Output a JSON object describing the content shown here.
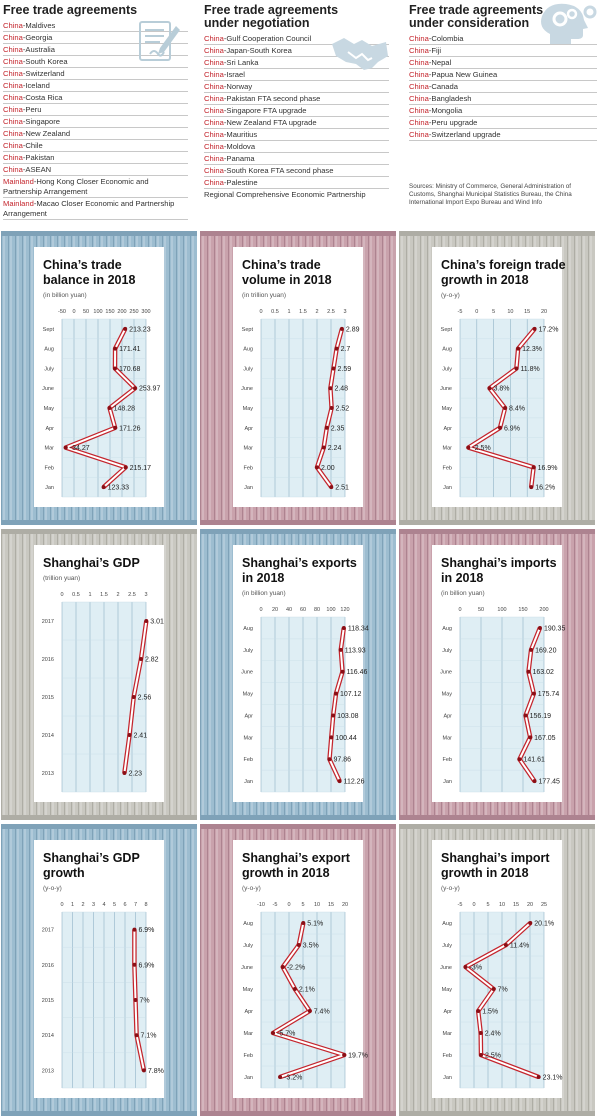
{
  "fta": {
    "col1": {
      "title": [
        "Free trade agreements"
      ],
      "items": [
        {
          "pre": "China",
          "rest": "-Maldives"
        },
        {
          "pre": "China",
          "rest": "-Georgia"
        },
        {
          "pre": "China",
          "rest": "-Australia"
        },
        {
          "pre": "China",
          "rest": "-South Korea"
        },
        {
          "pre": "China",
          "rest": "-Switzerland"
        },
        {
          "pre": "China",
          "rest": "-Iceland"
        },
        {
          "pre": "China",
          "rest": "-Costa Rica"
        },
        {
          "pre": "China",
          "rest": "-Peru"
        },
        {
          "pre": "China",
          "rest": "-Singapore"
        },
        {
          "pre": "China",
          "rest": "-New Zealand"
        },
        {
          "pre": "China",
          "rest": "-Chile"
        },
        {
          "pre": "China",
          "rest": "-Pakistan"
        },
        {
          "pre": "China",
          "rest": "-ASEAN"
        },
        {
          "pre": "Mainland",
          "rest": "-Hong Kong Closer Economic and Partnership Arrangement"
        },
        {
          "pre": "Mainland",
          "rest": "-Macao Closer Economic and Partnership Arrangement"
        }
      ]
    },
    "col2": {
      "title": [
        "Free trade agreements",
        "under negotiation"
      ],
      "items": [
        {
          "pre": "China",
          "rest": "-Gulf Cooperation Council"
        },
        {
          "pre": "China",
          "rest": "-Japan-South Korea"
        },
        {
          "pre": "China",
          "rest": "-Sri Lanka"
        },
        {
          "pre": "China",
          "rest": "-Israel"
        },
        {
          "pre": "China",
          "rest": "-Norway"
        },
        {
          "pre": "China",
          "rest": "-Pakistan FTA second phase"
        },
        {
          "pre": "China",
          "rest": "-Singapore FTA upgrade"
        },
        {
          "pre": "China",
          "rest": "-New Zealand FTA upgrade"
        },
        {
          "pre": "China",
          "rest": "-Mauritius"
        },
        {
          "pre": "China",
          "rest": "-Moldova"
        },
        {
          "pre": "China",
          "rest": "-Panama"
        },
        {
          "pre": "China",
          "rest": "-South Korea FTA second phase"
        },
        {
          "pre": "China",
          "rest": "-Palestine"
        },
        {
          "pre": "",
          "rest": "Regional Comprehensive Economic Partnership"
        }
      ]
    },
    "col3": {
      "title": [
        "Free trade agreements",
        "under consideration"
      ],
      "items": [
        {
          "pre": "China",
          "rest": "-Colombia"
        },
        {
          "pre": "China",
          "rest": "-Fiji"
        },
        {
          "pre": "China",
          "rest": "-Nepal"
        },
        {
          "pre": "China",
          "rest": "-Papua New Guinea"
        },
        {
          "pre": "China",
          "rest": "-Canada"
        },
        {
          "pre": "China",
          "rest": "-Bangladesh"
        },
        {
          "pre": "China",
          "rest": "-Mongolia"
        },
        {
          "pre": "China",
          "rest": "-Peru upgrade"
        },
        {
          "pre": "China",
          "rest": "-Switzerland upgrade"
        }
      ]
    },
    "sources": "Sources: Ministry of Commerce, General Administration of Customs, Shanghai Municipal Statistics Bureau, the China International Import Expo Bureau and Wind Info"
  },
  "colors": {
    "accent": "#c4252d",
    "blue": "#9dbdd0",
    "pink": "#c9a2ac",
    "gray": "#c9c8c1",
    "plot_bg": "#dfeef4"
  },
  "chart_data": [
    {
      "type": "line",
      "title": [
        "China’s trade",
        "balance in 2018"
      ],
      "subtitle": "(in billion yuan)",
      "theme": "blue",
      "categories": [
        "Jan",
        "Feb",
        "Mar",
        "Apr",
        "May",
        "June",
        "July",
        "Aug",
        "Sept"
      ],
      "values": [
        123.33,
        215.17,
        -34.27,
        171.26,
        148.28,
        253.97,
        170.68,
        171.41,
        213.23
      ],
      "labels": [
        "123.33",
        "215.17",
        "-34.27",
        "171.26",
        "148.28",
        "253.97",
        "170.68",
        "171.41",
        "213.23"
      ],
      "xticks": [
        -50,
        0,
        50,
        100,
        150,
        200,
        250,
        300
      ],
      "xlim": [
        -50,
        300
      ]
    },
    {
      "type": "line",
      "title": [
        "China’s trade",
        "volume in 2018"
      ],
      "subtitle": "(in trillion yuan)",
      "theme": "pink",
      "categories": [
        "Jan",
        "Feb",
        "Mar",
        "Apr",
        "May",
        "June",
        "July",
        "Aug",
        "Sept"
      ],
      "values": [
        2.51,
        2.0,
        2.24,
        2.35,
        2.52,
        2.48,
        2.59,
        2.7,
        2.89
      ],
      "labels": [
        "2.51",
        "2.00",
        "2.24",
        "2.35",
        "2.52",
        "2.48",
        "2.59",
        "2.7",
        "2.89"
      ],
      "xticks": [
        0,
        0.5,
        1,
        1.5,
        2,
        2.5,
        3
      ],
      "xlim": [
        0,
        3
      ]
    },
    {
      "type": "line",
      "title": [
        "China’s foreign trade",
        "growth in 2018"
      ],
      "subtitle": "(y-o-y)",
      "theme": "gray",
      "categories": [
        "Jan",
        "Feb",
        "Mar",
        "Apr",
        "May",
        "June",
        "July",
        "Aug",
        "Sept"
      ],
      "values": [
        16.2,
        16.9,
        -2.5,
        6.9,
        8.4,
        3.8,
        11.8,
        12.3,
        17.2
      ],
      "labels": [
        "16.2%",
        "16.9%",
        "-2.5%",
        "6.9%",
        "8.4%",
        "3.8%",
        "11.8%",
        "12.3%",
        "17.2%"
      ],
      "xticks": [
        -5,
        0,
        5,
        10,
        15,
        20
      ],
      "xlim": [
        -5,
        20
      ]
    },
    {
      "type": "line",
      "title": [
        "Shanghai’s GDP"
      ],
      "subtitle": "(trillion yuan)",
      "theme": "gray",
      "categories": [
        "2013",
        "2014",
        "2015",
        "2016",
        "2017"
      ],
      "values": [
        2.23,
        2.41,
        2.56,
        2.82,
        3.01
      ],
      "labels": [
        "2.23",
        "2.41",
        "2.56",
        "2.82",
        "3.01"
      ],
      "xticks": [
        0,
        0.5,
        1,
        1.5,
        2,
        2.5,
        3
      ],
      "xlim": [
        0,
        3
      ]
    },
    {
      "type": "line",
      "title": [
        "Shanghai’s exports",
        "in 2018"
      ],
      "subtitle": "(in billion yuan)",
      "theme": "blue",
      "categories": [
        "Jan",
        "Feb",
        "Mar",
        "Apr",
        "May",
        "June",
        "July",
        "Aug"
      ],
      "values": [
        112.26,
        97.86,
        100.44,
        103.08,
        107.12,
        116.46,
        113.93,
        118.34
      ],
      "labels": [
        "112.26",
        "97.86",
        "100.44",
        "103.08",
        "107.12",
        "116.46",
        "113.93",
        "118.34"
      ],
      "xticks": [
        0,
        20,
        40,
        60,
        80,
        100,
        120
      ],
      "xlim": [
        0,
        120
      ]
    },
    {
      "type": "line",
      "title": [
        "Shanghai’s imports",
        "in 2018"
      ],
      "subtitle": "(in billion yuan)",
      "theme": "pink",
      "categories": [
        "Jan",
        "Feb",
        "Mar",
        "Apr",
        "May",
        "June",
        "July",
        "Aug"
      ],
      "values": [
        177.45,
        141.61,
        167.05,
        156.19,
        175.74,
        163.02,
        169.2,
        190.35
      ],
      "labels": [
        "177.45",
        "141.61",
        "167.05",
        "156.19",
        "175.74",
        "163.02",
        "169.20",
        "190.35"
      ],
      "xticks": [
        0,
        50,
        100,
        150,
        200
      ],
      "xlim": [
        0,
        200
      ]
    },
    {
      "type": "line",
      "title": [
        "Shanghai’s GDP",
        "growth"
      ],
      "subtitle": "(y-o-y)",
      "theme": "blue",
      "categories": [
        "2013",
        "2014",
        "2015",
        "2016",
        "2017"
      ],
      "values": [
        7.8,
        7.1,
        7,
        6.9,
        6.9
      ],
      "labels": [
        "7.8%",
        "7.1%",
        "7%",
        "6.9%",
        "6.9%"
      ],
      "xticks": [
        0,
        1,
        2,
        3,
        4,
        5,
        6,
        7,
        8
      ],
      "xlim": [
        0,
        8
      ]
    },
    {
      "type": "line",
      "title": [
        "Shanghai’s export",
        "growth in 2018"
      ],
      "subtitle": "(y-o-y)",
      "theme": "pink",
      "categories": [
        "Jan",
        "Feb",
        "Mar",
        "Apr",
        "May",
        "June",
        "July",
        "Aug"
      ],
      "values": [
        -3.2,
        19.7,
        -5.7,
        7.4,
        2.1,
        -2.2,
        3.5,
        5.1
      ],
      "labels": [
        "-3.2%",
        "19.7%",
        "-5.7%",
        "7.4%",
        "2.1%",
        "-2.2%",
        "3.5%",
        "5.1%"
      ],
      "xticks": [
        -10,
        -5,
        0,
        5,
        10,
        15,
        20
      ],
      "xlim": [
        -10,
        20
      ]
    },
    {
      "type": "line",
      "title": [
        "Shanghai’s import",
        "growth in 2018"
      ],
      "subtitle": "(y-o-y)",
      "theme": "gray",
      "categories": [
        "Jan",
        "Feb",
        "Mar",
        "Apr",
        "May",
        "June",
        "July",
        "Aug"
      ],
      "values": [
        23.1,
        2.5,
        2.4,
        1.5,
        7,
        -3,
        11.4,
        20.1
      ],
      "labels": [
        "23.1%",
        "2.5%",
        "2.4%",
        "1.5%",
        "7%",
        "-3%",
        "11.4%",
        "20.1%"
      ],
      "xticks": [
        -5,
        0,
        5,
        10,
        15,
        20,
        25
      ],
      "xlim": [
        -5,
        25
      ]
    }
  ]
}
